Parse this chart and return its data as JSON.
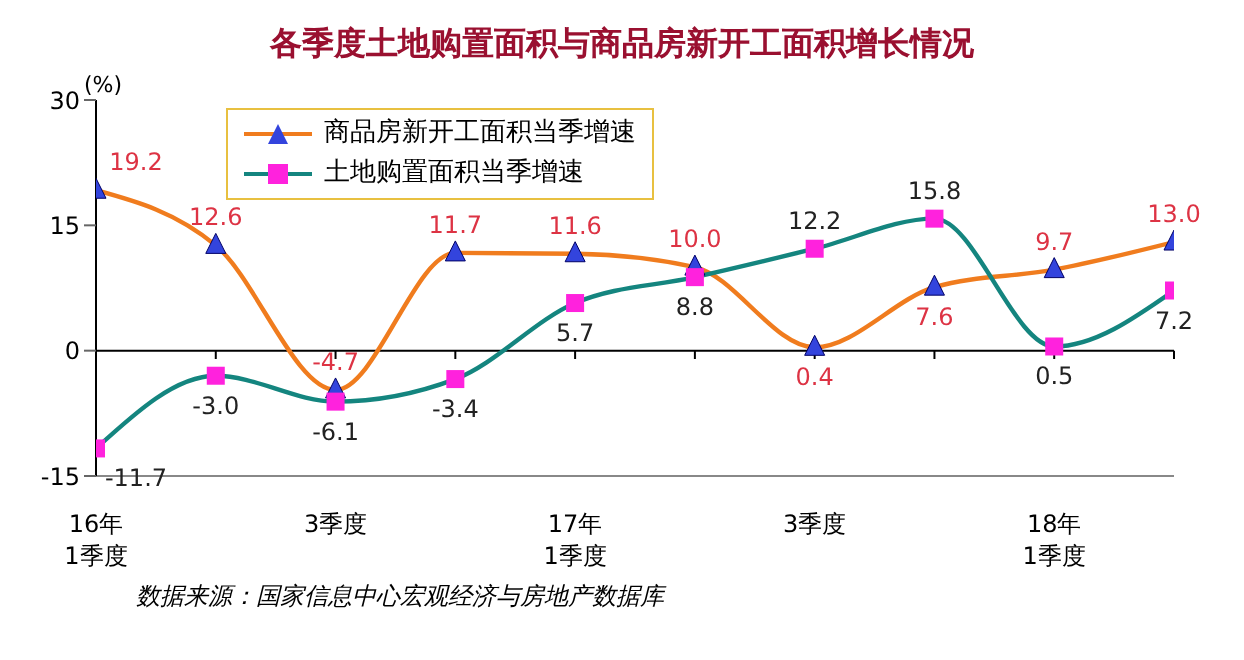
{
  "chart_data": {
    "type": "line",
    "title": "各季度土地购置面积与商品房新开工面积增长情况",
    "ylabel": "(%)",
    "categories": [
      "16年\n1季度",
      null,
      "3季度",
      null,
      "17年\n1季度",
      null,
      "3季度",
      null,
      "18年\n1季度",
      null
    ],
    "series": [
      {
        "name": "商品房新开工面积当季增速",
        "color": "#f07c1e",
        "marker": "triangle",
        "values": [
          19.2,
          12.6,
          -4.7,
          11.7,
          11.6,
          10.0,
          0.4,
          7.6,
          9.7,
          13.0
        ],
        "value_labels": [
          "19.2",
          "12.6",
          "-4.7",
          "11.7",
          "11.6",
          "10.0",
          "0.4",
          "7.6",
          "9.7",
          "13.0"
        ]
      },
      {
        "name": "土地购置面积当季增速",
        "color": "#14857f",
        "marker": "square",
        "values": [
          -11.7,
          -3.0,
          -6.1,
          -3.4,
          5.7,
          8.8,
          12.2,
          15.8,
          0.5,
          7.2
        ],
        "value_labels": [
          "-11.7",
          "-3.0",
          "-6.1",
          "-3.4",
          "5.7",
          "8.8",
          "12.2",
          "15.8",
          "0.5",
          "7.2"
        ]
      }
    ],
    "ylim": [
      -15,
      30
    ],
    "yticks": [
      -15,
      0,
      15,
      30
    ],
    "ref_lines": [
      {
        "axis": "y",
        "value": 0,
        "color": "#000000"
      }
    ],
    "legend": "top left",
    "grid": false,
    "annotations": [
      "数据来源：国家信息中心宏观经济与房地产数据库"
    ]
  }
}
